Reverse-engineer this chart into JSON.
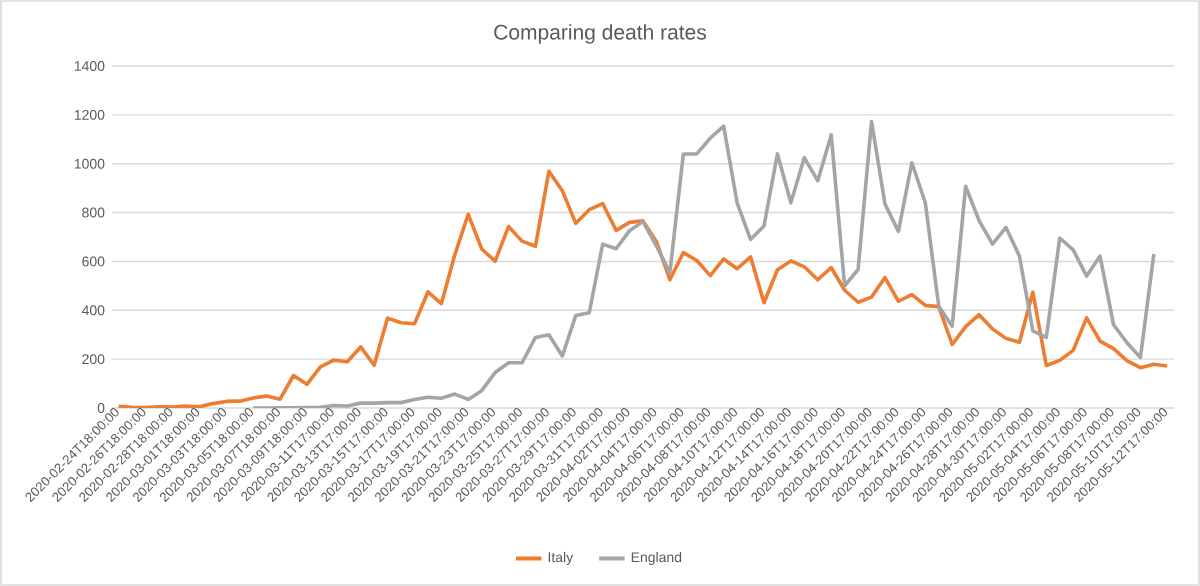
{
  "chart_data": {
    "type": "line",
    "title": "Comparing death rates",
    "categories": [
      "2020-02-24T18:00:00",
      null,
      "2020-02-26T18:00:00",
      null,
      "2020-02-28T18:00:00",
      null,
      "2020-03-01T18:00:00",
      null,
      "2020-03-03T18:00:00",
      null,
      "2020-03-05T18:00:00",
      null,
      "2020-03-07T18:00:00",
      null,
      "2020-03-09T18:00:00",
      null,
      "2020-03-11T17:00:00",
      null,
      "2020-03-13T17:00:00",
      null,
      "2020-03-15T17:00:00",
      null,
      "2020-03-17T17:00:00",
      null,
      "2020-03-19T17:00:00",
      null,
      "2020-03-21T17:00:00",
      null,
      "2020-03-23T17:00:00",
      null,
      "2020-03-25T17:00:00",
      null,
      "2020-03-27T17:00:00",
      null,
      "2020-03-29T17:00:00",
      null,
      "2020-03-31T17:00:00",
      null,
      "2020-04-02T17:00:00",
      null,
      "2020-04-04T17:00:00",
      null,
      "2020-04-06T17:00:00",
      null,
      "2020-04-08T17:00:00",
      null,
      "2020-04-10T17:00:00",
      null,
      "2020-04-12T17:00:00",
      null,
      "2020-04-14T17:00:00",
      null,
      "2020-04-16T17:00:00",
      null,
      "2020-04-18T17:00:00",
      null,
      "2020-04-20T17:00:00",
      null,
      "2020-04-22T17:00:00",
      null,
      "2020-04-24T17:00:00",
      null,
      "2020-04-26T17:00:00",
      null,
      "2020-04-28T17:00:00",
      null,
      "2020-04-30T17:00:00",
      null,
      "2020-05-02T17:00:00",
      null,
      "2020-05-04T17:00:00",
      null,
      "2020-05-06T17:00:00",
      null,
      "2020-05-08T17:00:00",
      null,
      "2020-05-10T17:00:00",
      null,
      "2020-05-12T17:00:00"
    ],
    "series": [
      {
        "name": "Italy",
        "color": "#ed7d31",
        "values": [
          7,
          3,
          2,
          5,
          4,
          8,
          5,
          18,
          27,
          28,
          41,
          49,
          36,
          133,
          97,
          168,
          196,
          189,
          250,
          175,
          368,
          349,
          345,
          475,
          427,
          627,
          793,
          651,
          601,
          743,
          683,
          662,
          969,
          889,
          756,
          812,
          837,
          727,
          760,
          766,
          681,
          525,
          636,
          604,
          542,
          610,
          570,
          619,
          431,
          566,
          602,
          578,
          525,
          575,
          482,
          433,
          454,
          534,
          437,
          464,
          420,
          415,
          260,
          333,
          382,
          323,
          285,
          269,
          474,
          174,
          195,
          236,
          369,
          274,
          243,
          194,
          165,
          179,
          172
        ]
      },
      {
        "name": "England",
        "color": "#a5a5a5",
        "values": [
          null,
          null,
          null,
          null,
          null,
          null,
          null,
          null,
          null,
          null,
          0,
          0,
          1,
          1,
          2,
          3,
          10,
          8,
          20,
          20,
          22,
          22,
          35,
          44,
          40,
          57,
          35,
          71,
          145,
          185,
          185,
          289,
          300,
          213,
          379,
          390,
          671,
          652,
          726,
          764,
          663,
          554,
          1040,
          1040,
          1105,
          1154,
          840,
          690,
          745,
          1040,
          840,
          1025,
          930,
          1118,
          500,
          567,
          1173,
          835,
          723,
          1004,
          840,
          417,
          335,
          908,
          767,
          671,
          739,
          622,
          316,
          289,
          696,
          647,
          540,
          622,
          341,
          267,
          207,
          630,
          null
        ]
      }
    ],
    "ylim": [
      0,
      1400
    ],
    "yticks": [
      0,
      200,
      400,
      600,
      800,
      1000,
      1200,
      1400
    ],
    "grid": "y",
    "legend": "bottom",
    "marker": "none",
    "line_style": "solid"
  }
}
